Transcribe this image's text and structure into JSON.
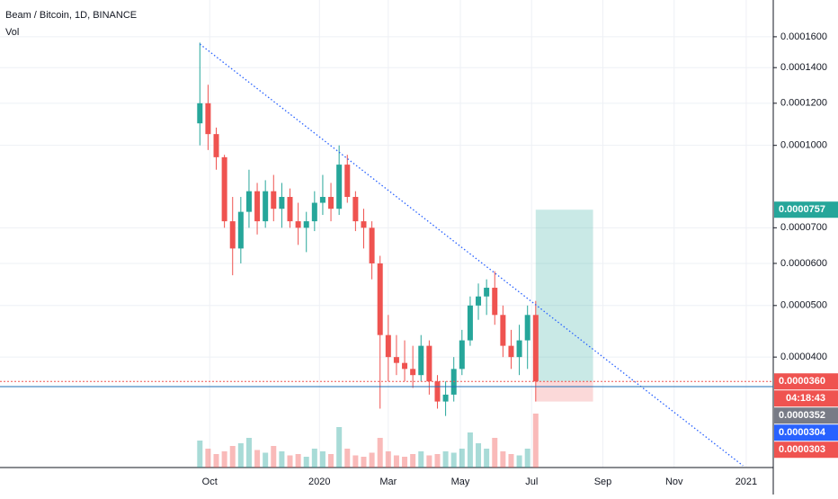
{
  "chart_data": {
    "type": "candlestick",
    "title": "Beam / Bitcoin, 1D, BINANCE",
    "subtitle": "Vol",
    "log": true,
    "grid": true,
    "up_color": "#26a69a",
    "down_color": "#ef5350",
    "xlim": [
      -24.4,
      70
    ],
    "xticks": [
      {
        "value": 1.2,
        "label": "Oct"
      },
      {
        "value": 14.6,
        "label": "2020"
      },
      {
        "value": 23,
        "label": "Mar"
      },
      {
        "value": 31.8,
        "label": "May"
      },
      {
        "value": 40.5,
        "label": "Jul"
      },
      {
        "value": 49.2,
        "label": "Sep"
      },
      {
        "value": 57.9,
        "label": "Nov"
      },
      {
        "value": 66.7,
        "label": "2021"
      }
    ],
    "ylim": [
      2.48e-05,
      0.0001876
    ],
    "yticks": [
      {
        "value": 0.00016,
        "label": "0.0001600"
      },
      {
        "value": 0.00014,
        "label": "0.0001400"
      },
      {
        "value": 0.00012,
        "label": "0.0001200"
      },
      {
        "value": 0.0001,
        "label": "0.0001000"
      },
      {
        "value": 7e-05,
        "label": "0.0000700"
      },
      {
        "value": 6e-05,
        "label": "0.0000600"
      },
      {
        "value": 5e-05,
        "label": "0.0000500"
      },
      {
        "value": 4e-05,
        "label": "0.0000400"
      }
    ],
    "open": [
      0.00011,
      0.00012,
      0.000105,
      9.5e-05,
      7.2e-05,
      6.4e-05,
      7.5e-05,
      8.2e-05,
      7.2e-05,
      8.2e-05,
      7.6e-05,
      8e-05,
      7.2e-05,
      7e-05,
      7.2e-05,
      7.8e-05,
      8e-05,
      7.6e-05,
      9.2e-05,
      8e-05,
      7.2e-05,
      7e-05,
      6e-05,
      4.4e-05,
      4e-05,
      3.9e-05,
      3.8e-05,
      3.7e-05,
      4.2e-05,
      3.6e-05,
      3.3e-05,
      3.4e-05,
      3.8e-05,
      4.3e-05,
      5e-05,
      5.2e-05,
      5.4e-05,
      4.8e-05,
      4.2e-05,
      4e-05,
      4.3e-05,
      4.8e-05
    ],
    "high": [
      0.000156,
      0.00013,
      0.000108,
      9.6e-05,
      8e-05,
      8e-05,
      9e-05,
      8.5e-05,
      8.6e-05,
      8.8e-05,
      8.5e-05,
      8.3e-05,
      7.8e-05,
      7.5e-05,
      8.2e-05,
      8.8e-05,
      8.5e-05,
      0.0001,
      9.6e-05,
      8.2e-05,
      7.6e-05,
      7.2e-05,
      6.2e-05,
      4.8e-05,
      4.4e-05,
      4.3e-05,
      4.2e-05,
      4.4e-05,
      4.3e-05,
      3.7e-05,
      3.6e-05,
      4e-05,
      4.5e-05,
      5.2e-05,
      5.5e-05,
      5.6e-05,
      5.8e-05,
      5e-05,
      4.5e-05,
      4.6e-05,
      5e-05,
      5.1e-05
    ],
    "low": [
      0.0001,
      9.8e-05,
      9e-05,
      7e-05,
      5.7e-05,
      6e-05,
      7e-05,
      6.8e-05,
      7e-05,
      7.2e-05,
      7e-05,
      7e-05,
      6.5e-05,
      6.3e-05,
      6.9e-05,
      7.4e-05,
      7.2e-05,
      7.4e-05,
      7.8e-05,
      6.9e-05,
      6.4e-05,
      5.6e-05,
      3.2e-05,
      3.6e-05,
      3.7e-05,
      3.6e-05,
      3.5e-05,
      3.6e-05,
      3.4e-05,
      3.2e-05,
      3.1e-05,
      3.3e-05,
      3.7e-05,
      4.2e-05,
      4.7e-05,
      4.8e-05,
      4.6e-05,
      4e-05,
      3.8e-05,
      3.7e-05,
      3.8e-05,
      3.3e-05
    ],
    "close": [
      0.00012,
      0.000105,
      9.5e-05,
      7.2e-05,
      6.4e-05,
      7.5e-05,
      8.2e-05,
      7.2e-05,
      8.2e-05,
      7.6e-05,
      8e-05,
      7.2e-05,
      7e-05,
      7.2e-05,
      7.8e-05,
      8e-05,
      7.6e-05,
      9.2e-05,
      8e-05,
      7.2e-05,
      7e-05,
      6e-05,
      4.4e-05,
      4e-05,
      3.9e-05,
      3.8e-05,
      3.7e-05,
      4.2e-05,
      3.6e-05,
      3.3e-05,
      3.4e-05,
      3.8e-05,
      4.3e-05,
      5e-05,
      5.2e-05,
      5.4e-05,
      4.8e-05,
      4.2e-05,
      4e-05,
      4.3e-05,
      4.8e-05,
      3.6e-05
    ],
    "volume": [
      20,
      14,
      10,
      12,
      16,
      18,
      22,
      13,
      11,
      16,
      12,
      9,
      10,
      8,
      14,
      12,
      10,
      30,
      14,
      9,
      8,
      11,
      22,
      12,
      9,
      8,
      10,
      12,
      9,
      10,
      12,
      11,
      14,
      26,
      18,
      14,
      22,
      12,
      10,
      9,
      14,
      40
    ],
    "trendline": {
      "from": [
        0,
        0.000155
      ],
      "to": [
        66.3,
        2.5e-05
      ]
    },
    "position": {
      "start": 41,
      "end": 48,
      "entry": 3.6e-05,
      "target": 7.57e-05,
      "stop": 3.3e-05
    },
    "price_lines": [
      {
        "value": 3.6e-05,
        "label": "0.0000360",
        "color": "#ef5350"
      },
      {
        "value": 3.52e-05,
        "label": "0.0000352",
        "color": "#1e6fb5"
      }
    ],
    "price_labels": [
      {
        "value": 7.57e-05,
        "label": "0.0000757",
        "color": "#26a69a"
      },
      {
        "value": 3.6e-05,
        "label": "0.0000360",
        "color": "#ef5350"
      },
      {
        "value": 3.52e-05,
        "label": "0.0000352",
        "color": "#787b86"
      },
      {
        "value": 3.04e-05,
        "label": "0.0000304",
        "color": "#2962ff"
      },
      {
        "value": 3.03e-05,
        "label": "0.0000303",
        "color": "#ef5350"
      }
    ],
    "countdown": "04:18:43"
  }
}
